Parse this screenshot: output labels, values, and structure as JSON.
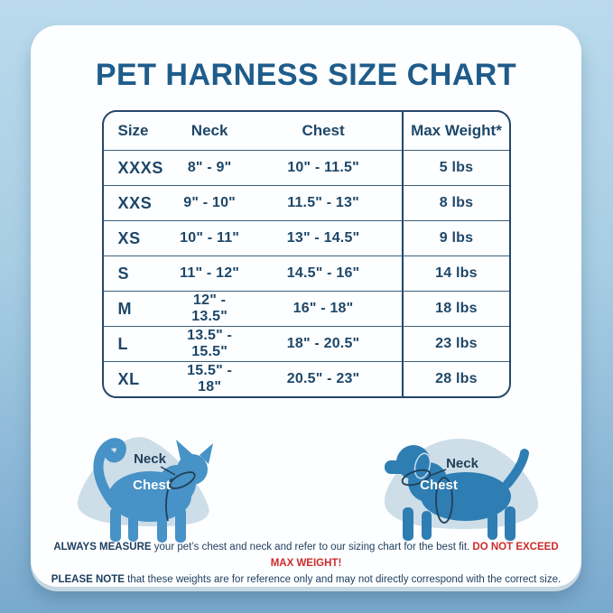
{
  "chart_data": {
    "type": "table",
    "title": "PET HARNESS SIZE CHART",
    "columns": [
      "Size",
      "Neck",
      "Chest",
      "Max Weight*"
    ],
    "rows": [
      [
        "XXXS",
        "8\" - 9\"",
        "10\" - 11.5\"",
        "5 lbs"
      ],
      [
        "XXS",
        "9\" - 10\"",
        "11.5\" - 13\"",
        "8 lbs"
      ],
      [
        "XS",
        "10\" - 11\"",
        "13\" - 14.5\"",
        "9 lbs"
      ],
      [
        "S",
        "11\" - 12\"",
        "14.5\" - 16\"",
        "14 lbs"
      ],
      [
        "M",
        "12\" - 13.5\"",
        "16\" - 18\"",
        "18 lbs"
      ],
      [
        "L",
        "13.5\" - 15.5\"",
        "18\" - 20.5\"",
        "23 lbs"
      ],
      [
        "XL",
        "15.5\" - 18\"",
        "20.5\" - 23\"",
        "28 lbs"
      ]
    ]
  },
  "figures": {
    "cat": {
      "neck_label": "Neck",
      "chest_label": "Chest"
    },
    "dog": {
      "neck_label": "Neck",
      "chest_label": "Chest"
    }
  },
  "footer": {
    "line1_bold": "ALWAYS MEASURE",
    "line1_text": " your pet’s chest and neck and refer to our sizing chart for the best fit. ",
    "line1_warning": "DO NOT EXCEED MAX WEIGHT!",
    "line2_bold": "PLEASE NOTE",
    "line2_text": " that these weights are for reference only and may not directly correspond with the correct size."
  },
  "colors": {
    "background_top": "#badaec",
    "background_bottom": "#79a9ce",
    "card": "#fdfeff",
    "title_blue": "#1e5c8b",
    "table_navy": "#1d4769",
    "border_navy": "#24466a",
    "warning_red": "#cd2b2b",
    "cat_blue": "#4792c7",
    "dog_blue": "#2e7eb4",
    "blob_gray_blue": "#cddee9",
    "measure_line": "#223f58"
  }
}
